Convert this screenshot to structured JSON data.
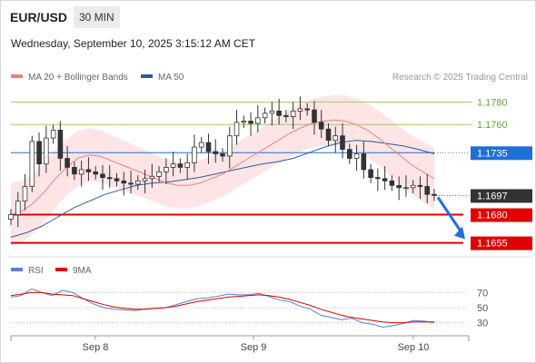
{
  "header": {
    "symbol": "EUR/USD",
    "timeframe": "30 MIN",
    "datetime": "Wednesday, September 10, 2025 3:15:12 AM CET"
  },
  "legend": {
    "ma20_label": "MA 20 + Bollinger Bands",
    "ma50_label": "MA 50",
    "credit": "Research © 2025 Trading Central"
  },
  "rsi_legend": {
    "rsi_label": "RSI",
    "ma_label": "9MA"
  },
  "colors": {
    "bullish": "#ffffff",
    "bearish": "#333333",
    "ma20": "#f08080",
    "bollinger_fill": "#fde0e0",
    "ma50": "#2f5a9c",
    "resistance": "#9ccc65",
    "support": "#e00000",
    "pivot": "#1f6fd6",
    "last_price_bg": "#333333",
    "arrow": "#1f6fd6",
    "rsi": "#5a7fd6",
    "rsi_ma": "#e00000"
  },
  "chart_data": {
    "type": "candlestick",
    "x_tick_labels": [
      "Sep 8",
      "Sep 9",
      "Sep 10"
    ],
    "price_levels": [
      {
        "value": 1.178,
        "label": "1.1780",
        "role": "resistance"
      },
      {
        "value": 1.176,
        "label": "1.1760",
        "role": "resistance"
      },
      {
        "value": 1.1735,
        "label": "1.1735",
        "role": "pivot"
      },
      {
        "value": 1.1697,
        "label": "1.1697",
        "role": "last"
      },
      {
        "value": 1.168,
        "label": "1.1680",
        "role": "support"
      },
      {
        "value": 1.1655,
        "label": "1.1655",
        "role": "support"
      }
    ],
    "ylim": [
      1.1645,
      1.179
    ],
    "closes": [
      1.168,
      1.1692,
      1.1705,
      1.1745,
      1.1725,
      1.1748,
      1.1755,
      1.173,
      1.1722,
      1.1716,
      1.172,
      1.1718,
      1.1716,
      1.1713,
      1.1712,
      1.171,
      1.1708,
      1.1707,
      1.171,
      1.1712,
      1.1714,
      1.1718,
      1.1722,
      1.1725,
      1.1722,
      1.1726,
      1.174,
      1.1744,
      1.1736,
      1.1734,
      1.1732,
      1.175,
      1.1762,
      1.1763,
      1.1761,
      1.1766,
      1.177,
      1.1772,
      1.1768,
      1.1767,
      1.1772,
      1.1774,
      1.1773,
      1.1762,
      1.1756,
      1.1746,
      1.175,
      1.1738,
      1.173,
      1.1734,
      1.172,
      1.1713,
      1.1712,
      1.171,
      1.1706,
      1.1704,
      1.1704,
      1.1706,
      1.1705,
      1.1698,
      1.1697
    ],
    "ma20": [
      1.168,
      1.1683,
      1.169,
      1.17,
      1.1712,
      1.1722,
      1.173,
      1.1733,
      1.1732,
      1.1728,
      1.1724,
      1.172,
      1.1716,
      1.1712,
      1.1708,
      1.1706,
      1.1706,
      1.1708,
      1.1712,
      1.1716,
      1.1722,
      1.1728,
      1.1734,
      1.174,
      1.1746,
      1.1752,
      1.1757,
      1.1761,
      1.1763,
      1.1764,
      1.1763,
      1.176,
      1.1755,
      1.1748,
      1.174,
      1.1732,
      1.1724,
      1.1718,
      1.1712
    ],
    "ma50": [
      1.166,
      1.1664,
      1.167,
      1.1678,
      1.1686,
      1.1692,
      1.1698,
      1.1702,
      1.1706,
      1.1708,
      1.1709,
      1.1711,
      1.1713,
      1.1716,
      1.1719,
      1.1722,
      1.1725,
      1.1727,
      1.173,
      1.1735,
      1.174,
      1.1744,
      1.1746,
      1.1745,
      1.1743,
      1.1741,
      1.1738,
      1.1734
    ],
    "rsi": {
      "levels": [
        70,
        50,
        30
      ],
      "ylim": [
        15,
        85
      ],
      "rsi": [
        64,
        66,
        75,
        70,
        66,
        73,
        70,
        62,
        55,
        50,
        48,
        47,
        46,
        48,
        49,
        50,
        54,
        58,
        62,
        63,
        65,
        68,
        67,
        67,
        69,
        65,
        60,
        58,
        52,
        48,
        40,
        37,
        34,
        36,
        30,
        28,
        24,
        26,
        29,
        33,
        32,
        30
      ],
      "ma": [
        66,
        68,
        70,
        70,
        68,
        67,
        66,
        62,
        58,
        54,
        51,
        49,
        48,
        48,
        49,
        50,
        52,
        55,
        58,
        60,
        62,
        64,
        65,
        66,
        67,
        66,
        64,
        61,
        57,
        53,
        48,
        44,
        40,
        37,
        35,
        33,
        31,
        30,
        30,
        31,
        31,
        31
      ]
    }
  }
}
